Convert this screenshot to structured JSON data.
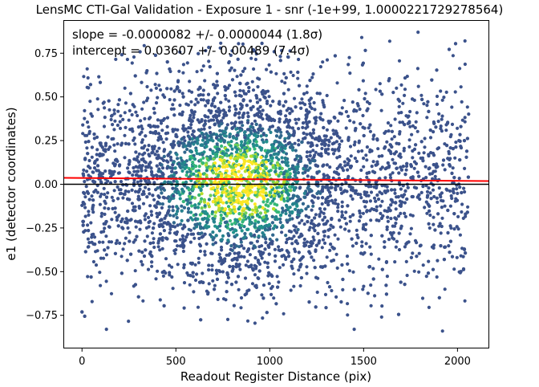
{
  "chart_data": {
    "type": "scatter",
    "title": "LensMC CTI-Gal Validation - Exposure 1 - snr (-1e+99, 1.0000221729278564)",
    "xlabel": "Readout Register Distance (pix)",
    "ylabel": "e1 (detector coordinates)",
    "xlim": [
      -95,
      2165
    ],
    "ylim": [
      -0.935,
      0.935
    ],
    "xticks": [
      0,
      500,
      1000,
      1500,
      2000
    ],
    "xtick_labels": [
      "0",
      "500",
      "1000",
      "1500",
      "2000"
    ],
    "yticks": [
      -0.75,
      -0.5,
      -0.25,
      0.0,
      0.25,
      0.5,
      0.75
    ],
    "ytick_labels": [
      "−0.75",
      "−0.50",
      "−0.25",
      "0.00",
      "0.25",
      "0.50",
      "0.75"
    ],
    "grid": false,
    "legend": "none",
    "annotations": [
      "slope = -0.0000082 +/- 0.0000044 (1.8σ)",
      "intercept = 0.03607 +/- 0.00489 (7.4σ)"
    ],
    "points_x_range": [
      0,
      2060
    ],
    "points_y_range": [
      -0.85,
      0.87
    ],
    "point_density_peak_x": 830,
    "colormap": "viridis",
    "fit_line": {
      "slope": -8.2e-06,
      "intercept": 0.03607,
      "color": "#ff0000"
    },
    "zero_line": {
      "y": 0.0,
      "color": "#000000"
    },
    "sample_points": [
      {
        "x": 1790,
        "y": 0.87
      },
      {
        "x": 2040,
        "y": 0.82
      },
      {
        "x": 1490,
        "y": 0.84
      },
      {
        "x": 130,
        "y": -0.83
      },
      {
        "x": 1450,
        "y": -0.83
      },
      {
        "x": 1920,
        "y": -0.84
      },
      {
        "x": 0,
        "y": -0.73
      }
    ]
  }
}
